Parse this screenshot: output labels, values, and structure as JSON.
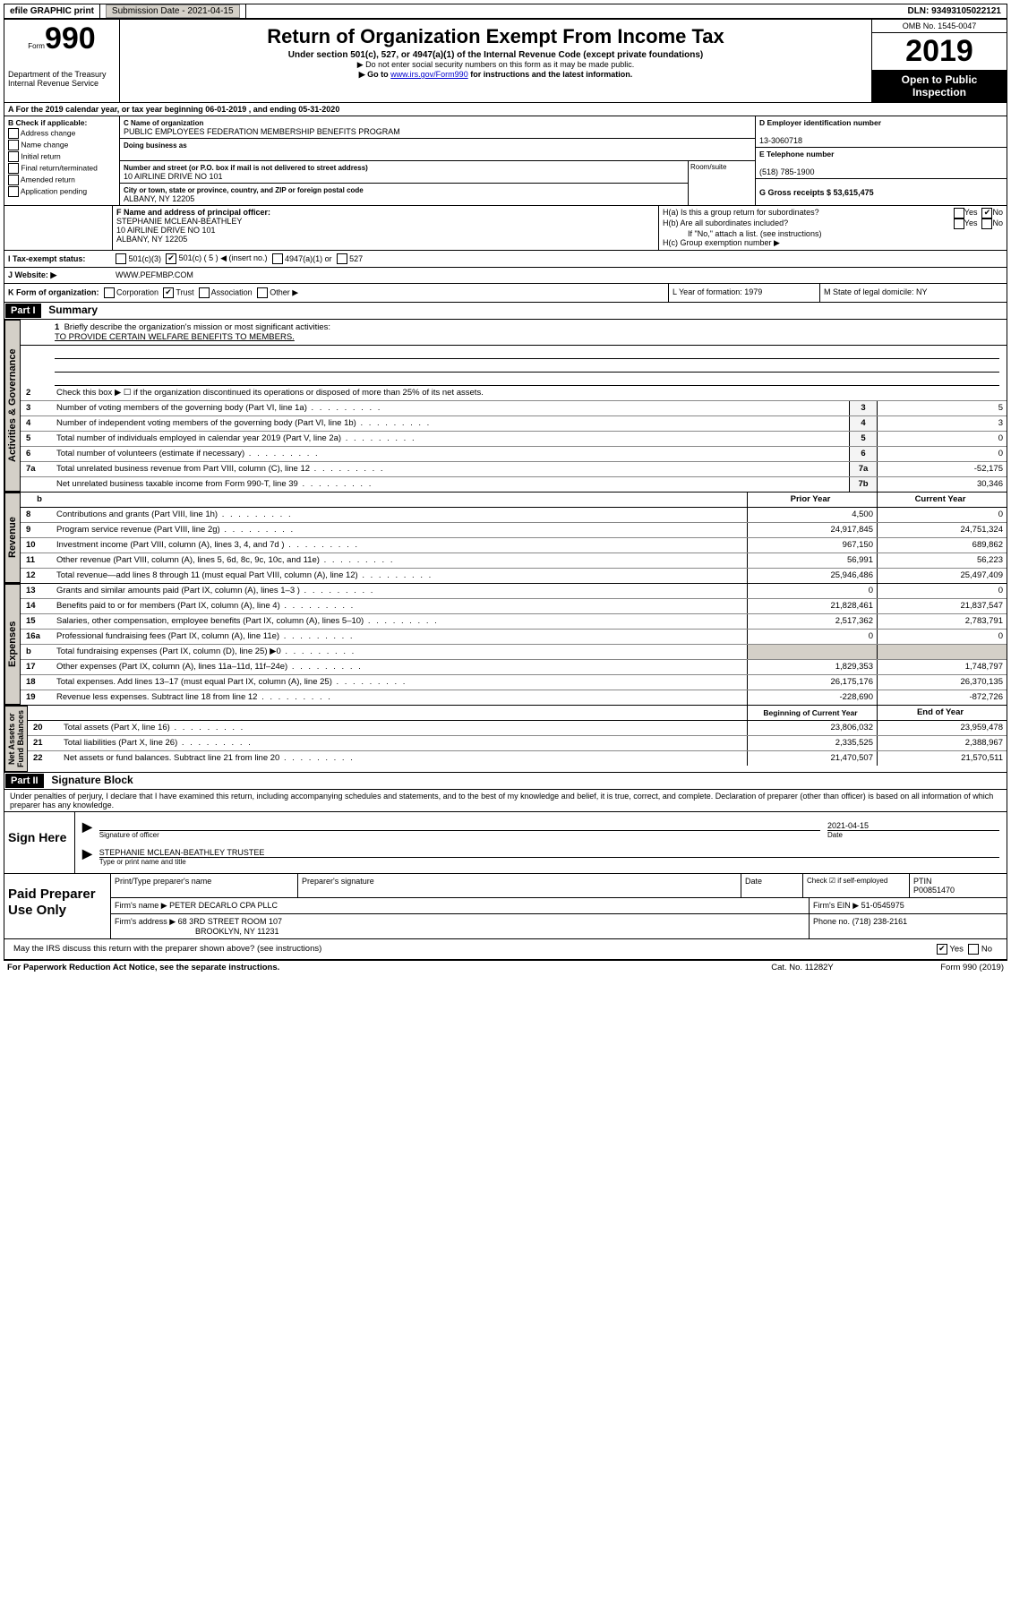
{
  "topbar": {
    "efile": "efile GRAPHIC print",
    "submission_label": "Submission Date - 2021-04-15",
    "dln_label": "DLN: 93493105022121"
  },
  "header": {
    "form_word": "Form",
    "form_num": "990",
    "dept": "Department of the Treasury\nInternal Revenue Service",
    "title": "Return of Organization Exempt From Income Tax",
    "subtitle": "Under section 501(c), 527, or 4947(a)(1) of the Internal Revenue Code (except private foundations)",
    "line1": "▶ Do not enter social security numbers on this form as it may be made public.",
    "line2_pre": "▶ Go to ",
    "line2_link": "www.irs.gov/Form990",
    "line2_post": " for instructions and the latest information.",
    "omb": "OMB No. 1545-0047",
    "year": "2019",
    "open1": "Open to Public",
    "open2": "Inspection"
  },
  "rowA": "A For the 2019 calendar year, or tax year beginning 06-01-2019   , and ending 05-31-2020",
  "colB": {
    "title": "B Check if applicable:",
    "opts": [
      "Address change",
      "Name change",
      "Initial return",
      "Final return/terminated",
      "Amended return",
      "Application pending"
    ]
  },
  "colC": {
    "name_label": "C Name of organization",
    "name": "PUBLIC EMPLOYEES FEDERATION MEMBERSHIP BENEFITS PROGRAM",
    "dba_label": "Doing business as",
    "dba": "",
    "street_label": "Number and street (or P.O. box if mail is not delivered to street address)",
    "street": "10 AIRLINE DRIVE NO 101",
    "room_label": "Room/suite",
    "city_label": "City or town, state or province, country, and ZIP or foreign postal code",
    "city": "ALBANY, NY  12205"
  },
  "colD": {
    "ein_label": "D Employer identification number",
    "ein": "13-3060718",
    "tel_label": "E Telephone number",
    "tel": "(518) 785-1900",
    "gross_label": "G Gross receipts $ 53,615,475"
  },
  "colF": {
    "label": "F  Name and address of principal officer:",
    "name": "STEPHANIE MCLEAN-BEATHLEY",
    "addr1": "10 AIRLINE DRIVE NO 101",
    "addr2": "ALBANY, NY  12205"
  },
  "colH": {
    "ha": "H(a)  Is this a group return for subordinates?",
    "hb": "H(b)  Are all subordinates included?",
    "hb_note": "If \"No,\" attach a list. (see instructions)",
    "hc": "H(c)  Group exemption number ▶"
  },
  "taxstatus": {
    "label": "I   Tax-exempt status:",
    "o1": "501(c)(3)",
    "o2": "501(c) ( 5 ) ◀ (insert no.)",
    "o3": "4947(a)(1) or",
    "o4": "527"
  },
  "website": {
    "label": "J   Website: ▶",
    "url": "WWW.PEFMBP.COM"
  },
  "rowK": {
    "k": "K Form of organization:",
    "opts": [
      "Corporation",
      "Trust",
      "Association",
      "Other ▶"
    ],
    "l": "L Year of formation: 1979",
    "m": "M State of legal domicile: NY"
  },
  "part1": {
    "header": "Part I",
    "title": "Summary",
    "q1": "Briefly describe the organization's mission or most significant activities:",
    "mission": "TO PROVIDE CERTAIN WELFARE BENEFITS TO MEMBERS.",
    "q2": "Check this box ▶ ☐  if the organization discontinued its operations or disposed of more than 25% of its net assets.",
    "gov": [
      {
        "n": "3",
        "d": "Number of voting members of the governing body (Part VI, line 1a)",
        "nc": "3",
        "v": "5"
      },
      {
        "n": "4",
        "d": "Number of independent voting members of the governing body (Part VI, line 1b)",
        "nc": "4",
        "v": "3"
      },
      {
        "n": "5",
        "d": "Total number of individuals employed in calendar year 2019 (Part V, line 2a)",
        "nc": "5",
        "v": "0"
      },
      {
        "n": "6",
        "d": "Total number of volunteers (estimate if necessary)",
        "nc": "6",
        "v": "0"
      },
      {
        "n": "7a",
        "d": "Total unrelated business revenue from Part VIII, column (C), line 12",
        "nc": "7a",
        "v": "-52,175"
      },
      {
        "n": "",
        "d": "Net unrelated business taxable income from Form 990-T, line 39",
        "nc": "7b",
        "v": "30,346"
      }
    ],
    "hdr_prior": "Prior Year",
    "hdr_curr": "Current Year",
    "rev": [
      {
        "n": "8",
        "d": "Contributions and grants (Part VIII, line 1h)",
        "p": "4,500",
        "c": "0"
      },
      {
        "n": "9",
        "d": "Program service revenue (Part VIII, line 2g)",
        "p": "24,917,845",
        "c": "24,751,324"
      },
      {
        "n": "10",
        "d": "Investment income (Part VIII, column (A), lines 3, 4, and 7d )",
        "p": "967,150",
        "c": "689,862"
      },
      {
        "n": "11",
        "d": "Other revenue (Part VIII, column (A), lines 5, 6d, 8c, 9c, 10c, and 11e)",
        "p": "56,991",
        "c": "56,223"
      },
      {
        "n": "12",
        "d": "Total revenue—add lines 8 through 11 (must equal Part VIII, column (A), line 12)",
        "p": "25,946,486",
        "c": "25,497,409"
      }
    ],
    "exp": [
      {
        "n": "13",
        "d": "Grants and similar amounts paid (Part IX, column (A), lines 1–3 )",
        "p": "0",
        "c": "0"
      },
      {
        "n": "14",
        "d": "Benefits paid to or for members (Part IX, column (A), line 4)",
        "p": "21,828,461",
        "c": "21,837,547"
      },
      {
        "n": "15",
        "d": "Salaries, other compensation, employee benefits (Part IX, column (A), lines 5–10)",
        "p": "2,517,362",
        "c": "2,783,791"
      },
      {
        "n": "16a",
        "d": "Professional fundraising fees (Part IX, column (A), line 11e)",
        "p": "0",
        "c": "0"
      },
      {
        "n": "b",
        "d": "Total fundraising expenses (Part IX, column (D), line 25) ▶0",
        "p": "",
        "c": ""
      },
      {
        "n": "17",
        "d": "Other expenses (Part IX, column (A), lines 11a–11d, 11f–24e)",
        "p": "1,829,353",
        "c": "1,748,797"
      },
      {
        "n": "18",
        "d": "Total expenses. Add lines 13–17 (must equal Part IX, column (A), line 25)",
        "p": "26,175,176",
        "c": "26,370,135"
      },
      {
        "n": "19",
        "d": "Revenue less expenses. Subtract line 18 from line 12",
        "p": "-228,690",
        "c": "-872,726"
      }
    ],
    "hdr_beg": "Beginning of Current Year",
    "hdr_end": "End of Year",
    "net": [
      {
        "n": "20",
        "d": "Total assets (Part X, line 16)",
        "p": "23,806,032",
        "c": "23,959,478"
      },
      {
        "n": "21",
        "d": "Total liabilities (Part X, line 26)",
        "p": "2,335,525",
        "c": "2,388,967"
      },
      {
        "n": "22",
        "d": "Net assets or fund balances. Subtract line 21 from line 20",
        "p": "21,470,507",
        "c": "21,570,511"
      }
    ]
  },
  "part2": {
    "header": "Part II",
    "title": "Signature Block",
    "penalty": "Under penalties of perjury, I declare that I have examined this return, including accompanying schedules and statements, and to the best of my knowledge and belief, it is true, correct, and complete. Declaration of preparer (other than officer) is based on all information of which preparer has any knowledge."
  },
  "sign": {
    "label": "Sign Here",
    "sig_of_officer": "Signature of officer",
    "date": "2021-04-15",
    "date_label": "Date",
    "name": "STEPHANIE MCLEAN-BEATHLEY TRUSTEE",
    "type_label": "Type or print name and title"
  },
  "prep": {
    "label": "Paid Preparer Use Only",
    "h_print": "Print/Type preparer's name",
    "h_sig": "Preparer's signature",
    "h_date": "Date",
    "check_label": "Check ☑ if self-employed",
    "ptin_label": "PTIN",
    "ptin": "P00851470",
    "firm_name_label": "Firm's name    ▶",
    "firm_name": "PETER DECARLO CPA PLLC",
    "firm_ein_label": "Firm's EIN ▶",
    "firm_ein": "51-0545975",
    "firm_addr_label": "Firm's address ▶",
    "firm_addr1": "68 3RD STREET ROOM 107",
    "firm_addr2": "BROOKLYN, NY  11231",
    "phone_label": "Phone no.",
    "phone": "(718) 238-2161",
    "discuss": "May the IRS discuss this return with the preparer shown above? (see instructions)"
  },
  "footer": {
    "left": "For Paperwork Reduction Act Notice, see the separate instructions.",
    "mid": "Cat. No. 11282Y",
    "right": "Form 990 (2019)"
  }
}
